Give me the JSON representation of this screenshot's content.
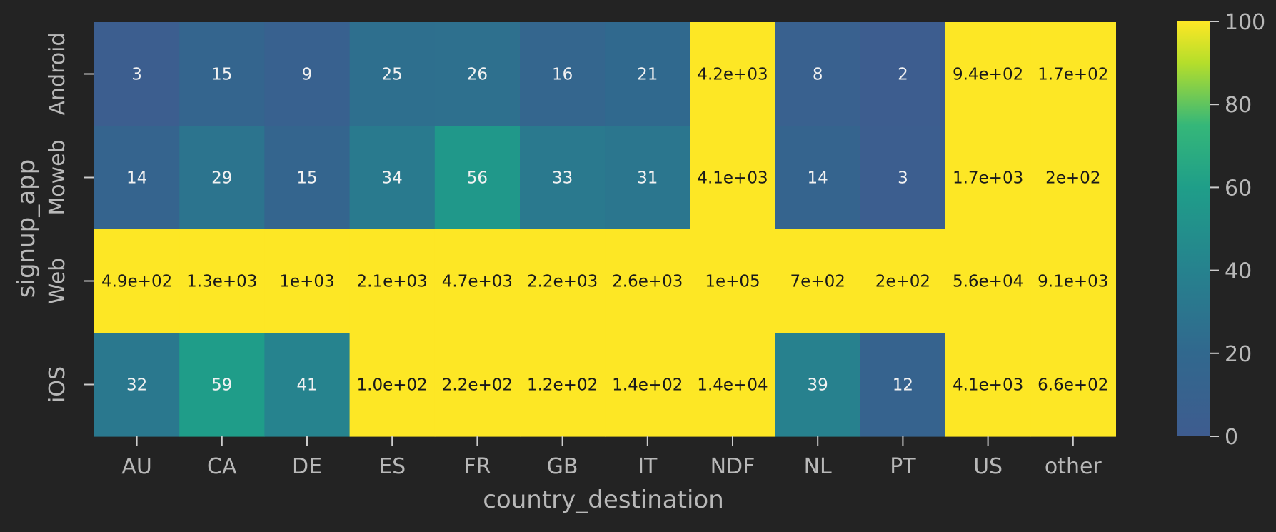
{
  "chart_data": {
    "type": "heatmap",
    "xlabel": "country_destination",
    "ylabel": "signup_app",
    "x_categories": [
      "AU",
      "CA",
      "DE",
      "ES",
      "FR",
      "GB",
      "IT",
      "NDF",
      "NL",
      "PT",
      "US",
      "other"
    ],
    "y_categories": [
      "Android",
      "Moweb",
      "Web",
      "iOS"
    ],
    "values": [
      [
        3,
        15,
        9,
        25,
        26,
        16,
        21,
        4200,
        8,
        2,
        940,
        170
      ],
      [
        14,
        29,
        15,
        34,
        56,
        33,
        31,
        4100,
        14,
        3,
        1700,
        200
      ],
      [
        490,
        1300,
        1000,
        2100,
        4700,
        2200,
        2600,
        100000,
        700,
        200,
        56000,
        9100
      ],
      [
        32,
        59,
        41,
        100,
        220,
        120,
        140,
        14000,
        39,
        12,
        4100,
        660
      ]
    ],
    "annotations": [
      [
        "3",
        "15",
        "9",
        "25",
        "26",
        "16",
        "21",
        "4.2e+03",
        "8",
        "2",
        "9.4e+02",
        "1.7e+02"
      ],
      [
        "14",
        "29",
        "15",
        "34",
        "56",
        "33",
        "31",
        "4.1e+03",
        "14",
        "3",
        "1.7e+03",
        "2e+02"
      ],
      [
        "4.9e+02",
        "1.3e+03",
        "1e+03",
        "2.1e+03",
        "4.7e+03",
        "2.2e+03",
        "2.6e+03",
        "1e+05",
        "7e+02",
        "2e+02",
        "5.6e+04",
        "9.1e+03"
      ],
      [
        "32",
        "59",
        "41",
        "1.0e+02",
        "2.2e+02",
        "1.2e+02",
        "1.4e+02",
        "1.4e+04",
        "39",
        "12",
        "4.1e+03",
        "6.6e+02"
      ]
    ],
    "colorbar": {
      "min": 0,
      "max": 100,
      "ticks": [
        0,
        20,
        40,
        60,
        80,
        100
      ],
      "colormap": "viridis"
    },
    "colors": {
      "background": "#232323",
      "text": "#b8b8b8",
      "tick": "#cccccc"
    }
  }
}
